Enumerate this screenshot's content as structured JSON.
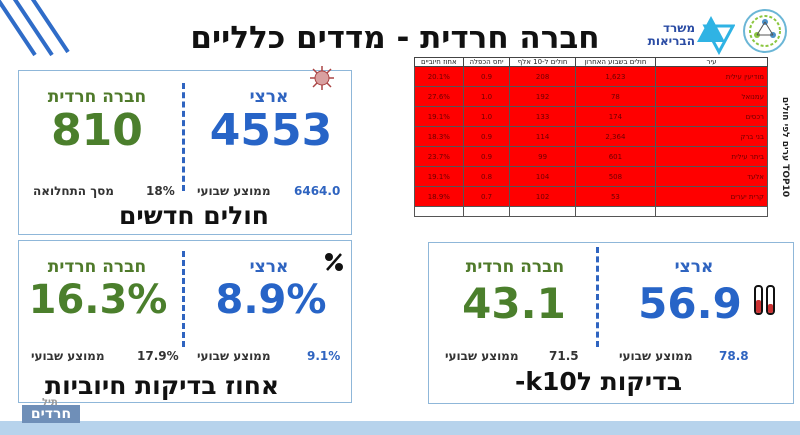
{
  "header": {
    "title": "חברה חרדית - מדדים כלליים",
    "ministry_logo_text": "משרד הבריאות"
  },
  "cases_panel": {
    "national_label": "ארצי",
    "haredi_label": "חברה חרדית",
    "national_value": "4553",
    "haredi_value": "810",
    "national_avg_value": "6464.0",
    "national_avg_label": "ממוצע שבועי",
    "haredi_share_value": "18%",
    "haredi_share_label": "מסך התחלואה",
    "caption": "חולים חדשים"
  },
  "positive_panel": {
    "national_label": "ארצי",
    "haredi_label": "חברה חרדית",
    "national_value": "8.9%",
    "haredi_value": "16.3%",
    "national_avg_value": "9.1%",
    "national_avg_label": "ממוצע שבועי",
    "haredi_avg_value": "17.9%",
    "haredi_avg_label": "ממוצע שבועי",
    "caption": "אחוז בדיקות חיוביות"
  },
  "tests_panel": {
    "national_label": "ארצי",
    "haredi_label": "חברה חרדית",
    "national_value": "56.9",
    "haredi_value": "43.1",
    "national_avg_value": "78.8",
    "national_avg_label": "ממוצע שבועי",
    "haredi_avg_value": "71.5",
    "haredi_avg_label": "ממוצע שבועי",
    "caption": "בדיקות לk10-"
  },
  "top_table": {
    "side_label": "TOP10 ערים לפי חולים",
    "headers": [
      "עיר",
      "חולים בשבוע האחרון",
      "חולים ל-10 אלף",
      "יחס הכפלה",
      "אחוז חיוביים"
    ],
    "rows": [
      [
        "מודיעין עילית",
        "1,623",
        "208",
        "0.9",
        "20.1%"
      ],
      [
        "עמנואל",
        "78",
        "192",
        "1.0",
        "27.6%"
      ],
      [
        "רכסים",
        "174",
        "133",
        "1.0",
        "19.1%"
      ],
      [
        "בני ברק",
        "2,364",
        "114",
        "0.9",
        "18.3%"
      ],
      [
        "ביתר עילית",
        "601",
        "99",
        "0.9",
        "23.7%"
      ],
      [
        "אלעד",
        "508",
        "104",
        "0.8",
        "19.1%"
      ],
      [
        "קרית יערים",
        "53",
        "102",
        "0.7",
        "18.9%"
      ]
    ]
  },
  "watermark": {
    "top": "תיל",
    "main": "חרדים"
  },
  "colors": {
    "blue": "#2764c7",
    "green": "#4b7f2c",
    "table_red": "#ff0000",
    "panel_border": "#8fb7d9"
  }
}
